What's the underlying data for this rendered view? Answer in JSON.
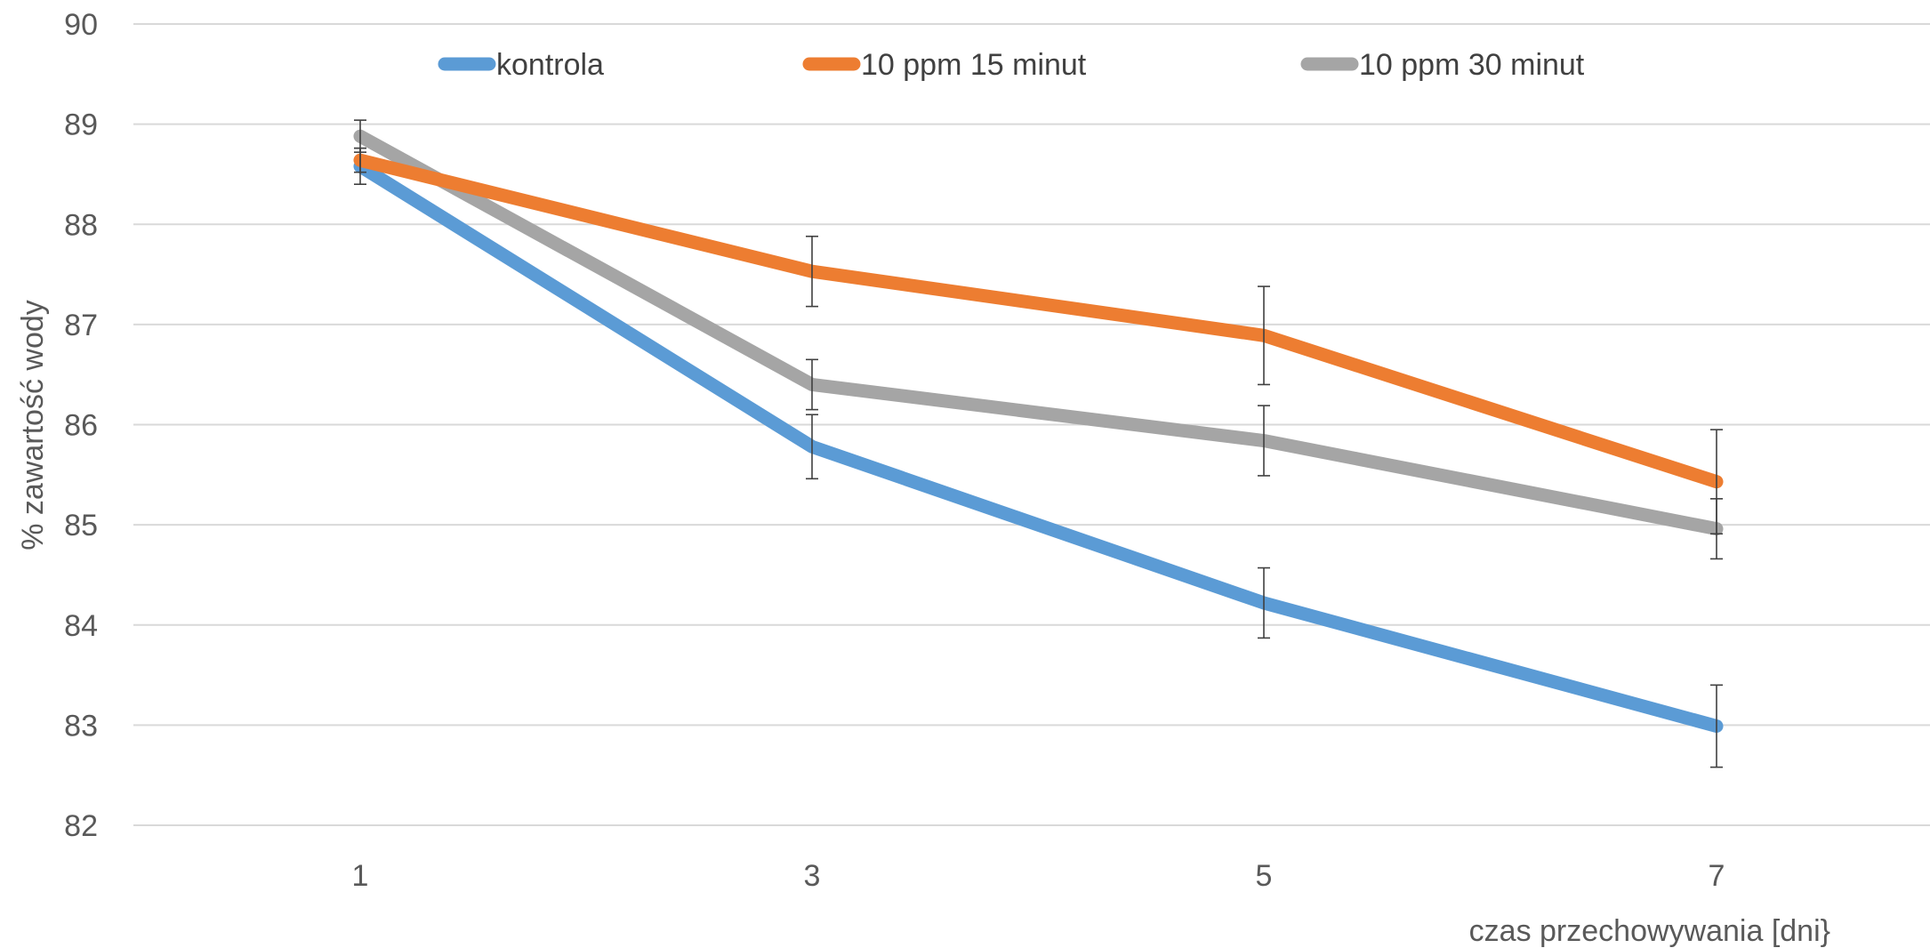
{
  "chart_data": {
    "type": "line",
    "title": "",
    "xlabel": "czas przechowywania [dni}",
    "ylabel": "% zawartość wody",
    "categories": [
      "1",
      "3",
      "5",
      "7"
    ],
    "ylim": [
      82,
      90
    ],
    "yticks": [
      82,
      83,
      84,
      85,
      86,
      87,
      88,
      89,
      90
    ],
    "grid": "horizontal",
    "legend_position": "top",
    "series": [
      {
        "name": "kontrola",
        "color": "#5b9bd5",
        "values": [
          88.58,
          85.78,
          84.22,
          82.99
        ],
        "errors": [
          0.18,
          0.32,
          0.35,
          0.41
        ]
      },
      {
        "name": "10 ppm 15 minut",
        "color": "#ed7d31",
        "values": [
          88.64,
          87.53,
          86.89,
          85.43
        ],
        "errors": [
          0.12,
          0.35,
          0.49,
          0.52
        ]
      },
      {
        "name": "10 ppm 30 minut",
        "color": "#a5a5a5",
        "values": [
          88.88,
          86.4,
          85.84,
          84.96
        ],
        "errors": [
          0.16,
          0.25,
          0.35,
          0.3
        ]
      }
    ]
  }
}
